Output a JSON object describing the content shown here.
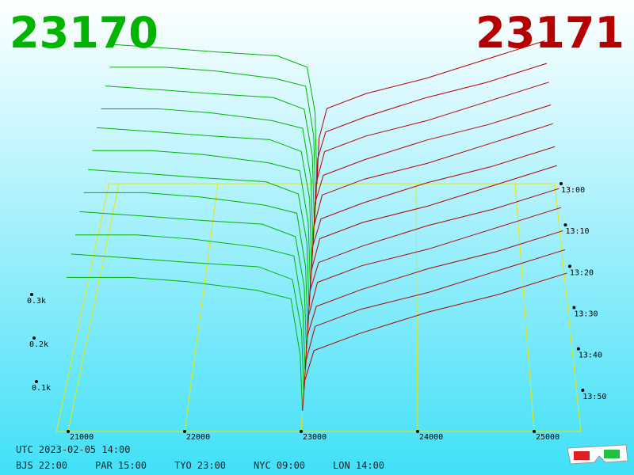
{
  "chart_data": {
    "type": "depth3d",
    "bid_price": 23170,
    "ask_price": 23171,
    "bid_color": "#00b400",
    "ask_color": "#b40000",
    "frame_color": "#e8e800",
    "bid_prices": [
      20950,
      21500,
      22000,
      22600,
      22900,
      22980,
      23000
    ],
    "ask_prices": [
      23000,
      23020,
      23100,
      23500,
      24100,
      24700,
      25300
    ],
    "rows": [
      "13:00",
      null,
      "13:10",
      null,
      "13:20",
      null,
      "13:30",
      null,
      "13:40",
      null,
      "13:50",
      null
    ],
    "bids": [
      [
        0.37,
        0.36,
        0.35,
        0.34,
        0.31,
        0.19,
        0
      ],
      [
        0.36,
        0.36,
        0.35,
        0.33,
        0.31,
        0.18,
        0
      ],
      [
        0.36,
        0.35,
        0.34,
        0.33,
        0.3,
        0.18,
        0
      ],
      [
        0.35,
        0.35,
        0.34,
        0.32,
        0.3,
        0.17,
        0
      ],
      [
        0.35,
        0.34,
        0.33,
        0.32,
        0.29,
        0.17,
        0
      ],
      [
        0.34,
        0.34,
        0.33,
        0.31,
        0.29,
        0.16,
        0
      ],
      [
        0.34,
        0.33,
        0.32,
        0.31,
        0.28,
        0.16,
        0
      ],
      [
        0.33,
        0.33,
        0.32,
        0.3,
        0.28,
        0.15,
        0
      ],
      [
        0.33,
        0.32,
        0.31,
        0.3,
        0.27,
        0.15,
        0
      ],
      [
        0.32,
        0.32,
        0.31,
        0.29,
        0.27,
        0.14,
        0
      ],
      [
        0.32,
        0.31,
        0.3,
        0.29,
        0.26,
        0.14,
        0
      ],
      [
        0.31,
        0.31,
        0.3,
        0.28,
        0.26,
        0.13,
        0
      ]
    ],
    "asks": [
      [
        0,
        0.12,
        0.2,
        0.24,
        0.28,
        0.33,
        0.38
      ],
      [
        0,
        0.12,
        0.19,
        0.23,
        0.28,
        0.32,
        0.37
      ],
      [
        0,
        0.11,
        0.19,
        0.23,
        0.27,
        0.32,
        0.37
      ],
      [
        0,
        0.11,
        0.18,
        0.22,
        0.27,
        0.31,
        0.36
      ],
      [
        0,
        0.1,
        0.18,
        0.22,
        0.26,
        0.31,
        0.36
      ],
      [
        0,
        0.1,
        0.17,
        0.21,
        0.26,
        0.3,
        0.35
      ],
      [
        0,
        0.09,
        0.17,
        0.21,
        0.25,
        0.3,
        0.35
      ],
      [
        0,
        0.09,
        0.16,
        0.2,
        0.25,
        0.29,
        0.34
      ],
      [
        0,
        0.08,
        0.16,
        0.2,
        0.24,
        0.29,
        0.34
      ],
      [
        0,
        0.08,
        0.15,
        0.19,
        0.24,
        0.28,
        0.33
      ],
      [
        0,
        0.07,
        0.15,
        0.19,
        0.23,
        0.28,
        0.33
      ],
      [
        0,
        0.07,
        0.14,
        0.18,
        0.23,
        0.27,
        0.32
      ]
    ],
    "xlim": [
      20900,
      25400
    ],
    "xticks": [
      21000,
      22000,
      23000,
      24000,
      25000
    ],
    "ylim": [
      0,
      0.4
    ],
    "yticks": [
      {
        "value": 0.1,
        "label": "0.1k"
      },
      {
        "value": 0.2,
        "label": "0.2k"
      },
      {
        "value": 0.3,
        "label": "0.3k"
      }
    ],
    "time_utc": "UTC 2023-02-05 14:00",
    "zones": [
      "BJS 22:00",
      "PAR 15:00",
      "TYO 23:00",
      "NYC 09:00",
      "LON 14:00"
    ]
  }
}
